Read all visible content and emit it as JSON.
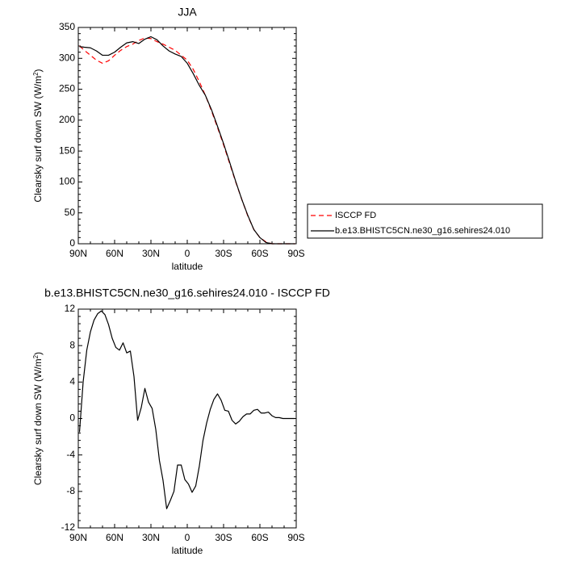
{
  "chart_data": [
    {
      "type": "line",
      "title": "JJA",
      "xlabel": "latitude",
      "ylabel": "Clearsky surf down SW (W/m",
      "ylabel_sup": "2",
      "ylabel_close": ")",
      "xlim": [
        90,
        -90
      ],
      "ylim": [
        0,
        350
      ],
      "xticks": [
        {
          "value": 90,
          "label": "90N"
        },
        {
          "value": 60,
          "label": "60N"
        },
        {
          "value": 30,
          "label": "30N"
        },
        {
          "value": 0,
          "label": "0"
        },
        {
          "value": -30,
          "label": "30S"
        },
        {
          "value": -60,
          "label": "60S"
        },
        {
          "value": -90,
          "label": "90S"
        }
      ],
      "yticks": [
        {
          "value": 0,
          "label": "0"
        },
        {
          "value": 50,
          "label": "50"
        },
        {
          "value": 100,
          "label": "100"
        },
        {
          "value": 150,
          "label": "150"
        },
        {
          "value": 200,
          "label": "200"
        },
        {
          "value": 250,
          "label": "250"
        },
        {
          "value": 300,
          "label": "300"
        },
        {
          "value": 350,
          "label": "350"
        }
      ],
      "series": [
        {
          "name": "ISCCP FD",
          "color": "#ff0000",
          "dash": "dashed",
          "x": [
            89,
            85,
            80,
            75,
            70,
            65,
            60,
            55,
            50,
            45,
            40,
            35,
            30,
            25,
            20,
            15,
            10,
            5,
            0,
            -5,
            -10,
            -15,
            -20,
            -25,
            -30,
            -35,
            -40,
            -45,
            -50,
            -55,
            -60,
            -65,
            -70,
            -75,
            -80,
            -85,
            -89
          ],
          "y": [
            320,
            313,
            305,
            297,
            292,
            296,
            305,
            313,
            319,
            323,
            329,
            333,
            332,
            327,
            323,
            318,
            313,
            305,
            297,
            282,
            262,
            240,
            215,
            188,
            160,
            130,
            100,
            72,
            45,
            23,
            10,
            3,
            0,
            0,
            0,
            0,
            0
          ]
        },
        {
          "name": "b.e13.BHISTC5CN.ne30_g16.sehires24.010",
          "color": "#000000",
          "dash": "solid",
          "x": [
            89,
            85,
            80,
            75,
            70,
            65,
            60,
            55,
            50,
            45,
            40,
            35,
            30,
            25,
            20,
            15,
            10,
            5,
            0,
            -5,
            -10,
            -15,
            -20,
            -25,
            -30,
            -35,
            -40,
            -45,
            -50,
            -55,
            -60,
            -65,
            -70,
            -75,
            -80,
            -85,
            -89
          ],
          "y": [
            319,
            318,
            317,
            312,
            305,
            305,
            310,
            318,
            325,
            327,
            324,
            331,
            335,
            330,
            320,
            312,
            307,
            303,
            292,
            275,
            256,
            240,
            217,
            190,
            162,
            132,
            101,
            72,
            46,
            23,
            10,
            2,
            0,
            0,
            0,
            0,
            0
          ]
        }
      ],
      "legend": {
        "placement": "right",
        "entries": [
          "ISCCP FD",
          "b.e13.BHISTC5CN.ne30_g16.sehires24.010"
        ]
      },
      "grid": false
    },
    {
      "type": "line",
      "title": "b.e13.BHISTC5CN.ne30_g16.sehires24.010 - ISCCP FD",
      "xlabel": "latitude",
      "ylabel": "Clearsky surf down SW (W/m",
      "ylabel_sup": "2",
      "ylabel_close": ")",
      "xlim": [
        90,
        -90
      ],
      "ylim": [
        -12,
        12
      ],
      "xticks": [
        {
          "value": 90,
          "label": "90N"
        },
        {
          "value": 60,
          "label": "60N"
        },
        {
          "value": 30,
          "label": "30N"
        },
        {
          "value": 0,
          "label": "0"
        },
        {
          "value": -30,
          "label": "30S"
        },
        {
          "value": -60,
          "label": "60S"
        },
        {
          "value": -90,
          "label": "90S"
        }
      ],
      "yticks": [
        {
          "value": -12,
          "label": "-12"
        },
        {
          "value": -8,
          "label": "-8"
        },
        {
          "value": -4,
          "label": "-4"
        },
        {
          "value": 0,
          "label": "0"
        },
        {
          "value": 4,
          "label": "4"
        },
        {
          "value": 8,
          "label": "8"
        },
        {
          "value": 12,
          "label": "12"
        }
      ],
      "series": [
        {
          "color": "#000000",
          "dash": "solid",
          "x": [
            89,
            86,
            83,
            80,
            77,
            74,
            71,
            68,
            65,
            62,
            59,
            56,
            53,
            50,
            47,
            44,
            41,
            38,
            35,
            32,
            29,
            26,
            23,
            20,
            17,
            14,
            11,
            8,
            5,
            2,
            -1,
            -4,
            -7,
            -10,
            -13,
            -16,
            -19,
            -22,
            -25,
            -28,
            -31,
            -34,
            -37,
            -40,
            -43,
            -46,
            -49,
            -52,
            -55,
            -58,
            -61,
            -64,
            -67,
            -70,
            -73,
            -76,
            -79,
            -82,
            -85,
            -89
          ],
          "y": [
            -1.5,
            4,
            7.5,
            9.5,
            10.8,
            11.5,
            11.8,
            11.4,
            10.3,
            8.8,
            7.8,
            7.5,
            8.3,
            7.2,
            7.4,
            4.6,
            -0.2,
            1.2,
            3.3,
            1.8,
            1.1,
            -1.2,
            -4.6,
            -6.8,
            -9.9,
            -9.0,
            -8.0,
            -5.1,
            -5.1,
            -6.7,
            -7.2,
            -8.1,
            -7.4,
            -5.2,
            -2.4,
            -0.5,
            1.0,
            2.1,
            2.7,
            2.0,
            0.9,
            0.8,
            -0.2,
            -0.6,
            -0.3,
            0.2,
            0.5,
            0.5,
            0.9,
            1.0,
            0.6,
            0.6,
            0.7,
            0.3,
            0.1,
            0.1,
            0.0,
            0.0,
            0.0,
            0.0
          ]
        }
      ],
      "grid": false
    }
  ]
}
